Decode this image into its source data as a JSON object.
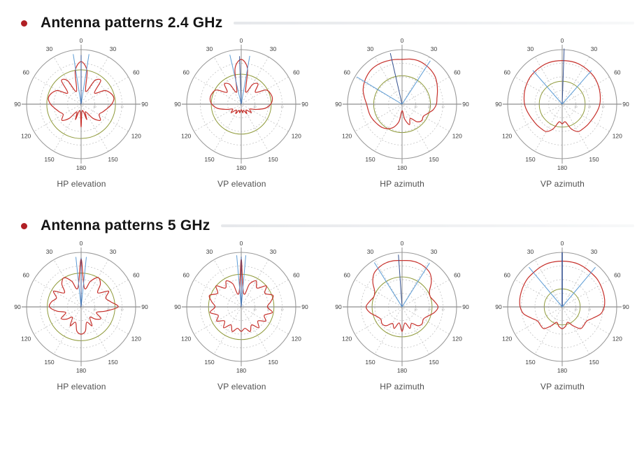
{
  "colors": {
    "red": "#c62f2a",
    "light_blue": "#5b9bd5",
    "navy": "#33508f",
    "olive": "#8f9a3a",
    "grid": "#c3c3c3",
    "outer_ring": "#9b9b9b",
    "axis": "#8f8f8f",
    "angle_label": "#3a3a3a",
    "ring_label": "#8a8a8a",
    "bullet": "#b01f24"
  },
  "sections": [
    {
      "id": "2g4",
      "title": "Antenna patterns 2.4 GHz"
    },
    {
      "id": "5g",
      "title": "Antenna patterns 5 GHz"
    }
  ],
  "chart_data": [
    {
      "type": "polar",
      "id": "hp-elevation-2g4",
      "band_id": "2g4",
      "band": "2.4 GHz",
      "caption": "HP elevation",
      "angle_ticks_deg": [
        0,
        30,
        60,
        90,
        120,
        150,
        180
      ],
      "grid_rings": [
        0.25,
        0.5,
        0.75,
        1.0
      ],
      "ring_labels": [
        "30",
        "20",
        "10"
      ],
      "reference_ring_r": 0.63,
      "beam_lines": [
        {
          "angle_deg": -9,
          "r": 0.93,
          "color": "light_blue"
        },
        {
          "angle_deg": 9,
          "r": 0.93,
          "color": "light_blue"
        },
        {
          "angle_deg": 0,
          "r": 0.9,
          "color": "navy"
        }
      ],
      "pattern": {
        "angle_step_deg": 10,
        "r": [
          0.78,
          0.62,
          0.25,
          0.5,
          0.56,
          0.32,
          0.5,
          0.58,
          0.61,
          0.56,
          0.48,
          0.42,
          0.38,
          0.46,
          0.34,
          0.16,
          0.3,
          0.12,
          0.42,
          0.12,
          0.3,
          0.16,
          0.34,
          0.46,
          0.38,
          0.42,
          0.48,
          0.56,
          0.61,
          0.58,
          0.5,
          0.32,
          0.56,
          0.5,
          0.25,
          0.62
        ]
      }
    },
    {
      "type": "polar",
      "id": "vp-elevation-2g4",
      "band_id": "2g4",
      "band": "2.4 GHz",
      "caption": "VP elevation",
      "angle_ticks_deg": [
        0,
        30,
        60,
        90,
        120,
        150,
        180
      ],
      "grid_rings": [
        0.25,
        0.5,
        0.75,
        1.0
      ],
      "ring_labels": [
        "30",
        "20",
        "10"
      ],
      "reference_ring_r": 0.55,
      "beam_lines": [
        {
          "angle_deg": -13,
          "r": 0.93,
          "color": "light_blue"
        },
        {
          "angle_deg": 10,
          "r": 0.9,
          "color": "light_blue"
        },
        {
          "angle_deg": -2,
          "r": 0.88,
          "color": "navy"
        }
      ],
      "pattern": {
        "angle_step_deg": 10,
        "r": [
          0.82,
          0.66,
          0.24,
          0.42,
          0.48,
          0.34,
          0.52,
          0.57,
          0.58,
          0.54,
          0.44,
          0.28,
          0.18,
          0.24,
          0.14,
          0.2,
          0.12,
          0.16,
          0.1,
          0.16,
          0.12,
          0.2,
          0.14,
          0.24,
          0.18,
          0.28,
          0.44,
          0.54,
          0.58,
          0.57,
          0.52,
          0.34,
          0.48,
          0.42,
          0.24,
          0.66
        ]
      }
    },
    {
      "type": "polar",
      "id": "hp-azimuth-2g4",
      "band_id": "2g4",
      "band": "2.4 GHz",
      "caption": "HP azimuth",
      "angle_ticks_deg": [
        0,
        30,
        60,
        90,
        120,
        150,
        180
      ],
      "grid_rings": [
        0.25,
        0.5,
        0.75,
        1.0
      ],
      "ring_labels": [
        "30",
        "20",
        "10"
      ],
      "reference_ring_r": 0.52,
      "beam_lines": [
        {
          "angle_deg": -13,
          "r": 0.96,
          "color": "navy"
        },
        {
          "angle_deg": 33,
          "r": 0.95,
          "color": "light_blue"
        },
        {
          "angle_deg": -59,
          "r": 0.97,
          "color": "light_blue"
        }
      ],
      "pattern": {
        "angle_step_deg": 10,
        "r": [
          0.82,
          0.84,
          0.85,
          0.84,
          0.82,
          0.79,
          0.74,
          0.69,
          0.65,
          0.63,
          0.58,
          0.5,
          0.45,
          0.47,
          0.42,
          0.3,
          0.4,
          0.28,
          0.12,
          0.32,
          0.45,
          0.52,
          0.56,
          0.58,
          0.6,
          0.62,
          0.63,
          0.65,
          0.7,
          0.76,
          0.8,
          0.83,
          0.85,
          0.85,
          0.84,
          0.83
        ]
      }
    },
    {
      "type": "polar",
      "id": "vp-azimuth-2g4",
      "band_id": "2g4",
      "band": "2.4 GHz",
      "caption": "VP azimuth",
      "angle_ticks_deg": [
        0,
        30,
        60,
        90,
        120,
        150,
        180
      ],
      "grid_rings": [
        0.25,
        0.5,
        0.75,
        1.0
      ],
      "ring_labels": [
        "30",
        "20",
        "10"
      ],
      "reference_ring_r": 0.42,
      "beam_lines": [
        {
          "angle_deg": 2,
          "r": 1.02,
          "color": "navy"
        },
        {
          "angle_deg": -41,
          "r": 0.82,
          "color": "light_blue"
        },
        {
          "angle_deg": 41,
          "r": 0.82,
          "color": "light_blue"
        }
      ],
      "pattern": {
        "angle_step_deg": 10,
        "r": [
          0.8,
          0.8,
          0.8,
          0.79,
          0.78,
          0.77,
          0.75,
          0.73,
          0.71,
          0.69,
          0.66,
          0.63,
          0.61,
          0.6,
          0.59,
          0.58,
          0.48,
          0.33,
          0.36,
          0.33,
          0.48,
          0.58,
          0.59,
          0.6,
          0.61,
          0.63,
          0.66,
          0.69,
          0.71,
          0.73,
          0.75,
          0.77,
          0.78,
          0.79,
          0.8,
          0.8
        ]
      }
    },
    {
      "type": "polar",
      "id": "hp-elevation-5g",
      "band_id": "5g",
      "band": "5 GHz",
      "caption": "HP elevation",
      "angle_ticks_deg": [
        0,
        30,
        60,
        90,
        120,
        150,
        180
      ],
      "grid_rings": [
        0.25,
        0.5,
        0.75,
        1.0
      ],
      "ring_labels": [
        "30",
        "20",
        "10"
      ],
      "reference_ring_r": 0.62,
      "beam_lines": [
        {
          "angle_deg": -6,
          "r": 0.92,
          "color": "light_blue"
        },
        {
          "angle_deg": 6,
          "r": 0.92,
          "color": "light_blue"
        },
        {
          "angle_deg": 0,
          "r": 0.9,
          "color": "navy"
        }
      ],
      "pattern": {
        "angle_step_deg": 10,
        "r": [
          0.88,
          0.35,
          0.5,
          0.62,
          0.55,
          0.4,
          0.58,
          0.48,
          0.55,
          0.68,
          0.45,
          0.3,
          0.42,
          0.35,
          0.25,
          0.4,
          0.3,
          0.45,
          0.5,
          0.45,
          0.3,
          0.4,
          0.25,
          0.35,
          0.42,
          0.3,
          0.45,
          0.58,
          0.55,
          0.48,
          0.58,
          0.4,
          0.55,
          0.62,
          0.5,
          0.35
        ]
      }
    },
    {
      "type": "polar",
      "id": "vp-elevation-5g",
      "band_id": "5g",
      "band": "5 GHz",
      "caption": "VP elevation",
      "angle_ticks_deg": [
        0,
        30,
        60,
        90,
        120,
        150,
        180
      ],
      "grid_rings": [
        0.25,
        0.5,
        0.75,
        1.0
      ],
      "ring_labels": [
        "30",
        "20",
        "10"
      ],
      "reference_ring_r": 0.6,
      "beam_lines": [
        {
          "angle_deg": -5,
          "r": 0.95,
          "color": "light_blue"
        },
        {
          "angle_deg": 5,
          "r": 0.95,
          "color": "light_blue"
        },
        {
          "angle_deg": 0,
          "r": 0.92,
          "color": "navy"
        }
      ],
      "pattern": {
        "angle_step_deg": 10,
        "r": [
          0.88,
          0.25,
          0.45,
          0.55,
          0.45,
          0.6,
          0.5,
          0.62,
          0.55,
          0.48,
          0.58,
          0.45,
          0.52,
          0.4,
          0.5,
          0.38,
          0.48,
          0.4,
          0.45,
          0.4,
          0.48,
          0.38,
          0.5,
          0.4,
          0.52,
          0.45,
          0.58,
          0.48,
          0.55,
          0.62,
          0.5,
          0.6,
          0.45,
          0.55,
          0.45,
          0.25
        ]
      }
    },
    {
      "type": "polar",
      "id": "hp-azimuth-5g",
      "band_id": "5g",
      "band": "5 GHz",
      "caption": "HP azimuth",
      "angle_ticks_deg": [
        0,
        30,
        60,
        90,
        120,
        150,
        180
      ],
      "grid_rings": [
        0.25,
        0.5,
        0.75,
        1.0
      ],
      "ring_labels": [
        "30",
        "20",
        "10"
      ],
      "reference_ring_r": 0.55,
      "beam_lines": [
        {
          "angle_deg": -4,
          "r": 0.96,
          "color": "navy"
        },
        {
          "angle_deg": -32,
          "r": 0.96,
          "color": "light_blue"
        },
        {
          "angle_deg": 32,
          "r": 0.95,
          "color": "light_blue"
        }
      ],
      "pattern": {
        "angle_step_deg": 10,
        "r": [
          0.85,
          0.86,
          0.86,
          0.84,
          0.8,
          0.7,
          0.58,
          0.55,
          0.6,
          0.66,
          0.6,
          0.5,
          0.45,
          0.48,
          0.45,
          0.35,
          0.42,
          0.3,
          0.45,
          0.3,
          0.42,
          0.35,
          0.45,
          0.48,
          0.45,
          0.5,
          0.6,
          0.66,
          0.6,
          0.55,
          0.58,
          0.7,
          0.8,
          0.84,
          0.86,
          0.86
        ]
      }
    },
    {
      "type": "polar",
      "id": "vp-azimuth-5g",
      "band_id": "5g",
      "band": "5 GHz",
      "caption": "VP azimuth",
      "angle_ticks_deg": [
        0,
        30,
        60,
        90,
        120,
        150,
        180
      ],
      "grid_rings": [
        0.25,
        0.5,
        0.75,
        1.0
      ],
      "ring_labels": [
        "30",
        "20",
        "10"
      ],
      "reference_ring_r": 0.33,
      "beam_lines": [
        {
          "angle_deg": 0,
          "r": 1.0,
          "color": "navy",
          "width": 1.6
        },
        {
          "angle_deg": -40,
          "r": 0.95,
          "color": "light_blue"
        },
        {
          "angle_deg": 40,
          "r": 0.95,
          "color": "light_blue"
        }
      ],
      "pattern": {
        "angle_step_deg": 10,
        "r": [
          0.84,
          0.84,
          0.84,
          0.83,
          0.82,
          0.82,
          0.81,
          0.8,
          0.79,
          0.77,
          0.72,
          0.6,
          0.52,
          0.52,
          0.52,
          0.4,
          0.3,
          0.36,
          0.4,
          0.36,
          0.3,
          0.4,
          0.52,
          0.52,
          0.52,
          0.6,
          0.72,
          0.77,
          0.79,
          0.8,
          0.81,
          0.82,
          0.82,
          0.83,
          0.84,
          0.84
        ]
      }
    }
  ]
}
